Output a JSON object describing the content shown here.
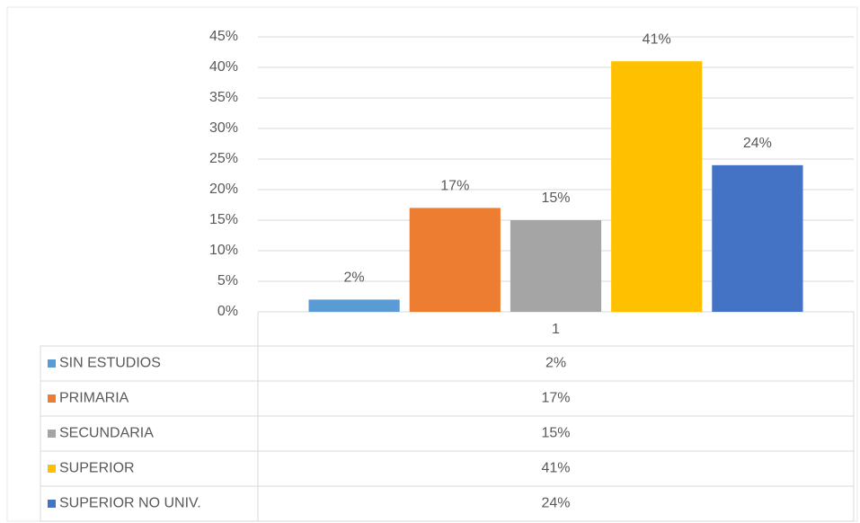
{
  "chart_data": {
    "type": "bar",
    "categories": [
      "1"
    ],
    "series": [
      {
        "name": "SIN ESTUDIOS",
        "color": "#5b9bd5",
        "values": [
          2
        ],
        "value_labels": [
          "2%"
        ]
      },
      {
        "name": "PRIMARIA",
        "color": "#ed7d31",
        "values": [
          17
        ],
        "value_labels": [
          "17%"
        ]
      },
      {
        "name": "SECUNDARIA",
        "color": "#a5a5a5",
        "values": [
          15
        ],
        "value_labels": [
          "15%"
        ]
      },
      {
        "name": "SUPERIOR",
        "color": "#ffc000",
        "values": [
          41
        ],
        "value_labels": [
          "41%"
        ]
      },
      {
        "name": "SUPERIOR NO UNIV.",
        "color": "#4472c4",
        "values": [
          24
        ],
        "value_labels": [
          "24%"
        ]
      }
    ],
    "ylim": [
      0,
      45
    ],
    "yticks": [
      {
        "value": 0,
        "label": "0%"
      },
      {
        "value": 5,
        "label": "5%"
      },
      {
        "value": 10,
        "label": "10%"
      },
      {
        "value": 15,
        "label": "15%"
      },
      {
        "value": 20,
        "label": "20%"
      },
      {
        "value": 25,
        "label": "25%"
      },
      {
        "value": 30,
        "label": "30%"
      },
      {
        "value": 35,
        "label": "35%"
      },
      {
        "value": 40,
        "label": "40%"
      },
      {
        "value": 45,
        "label": "45%"
      }
    ],
    "grid": true,
    "data_table": true
  }
}
